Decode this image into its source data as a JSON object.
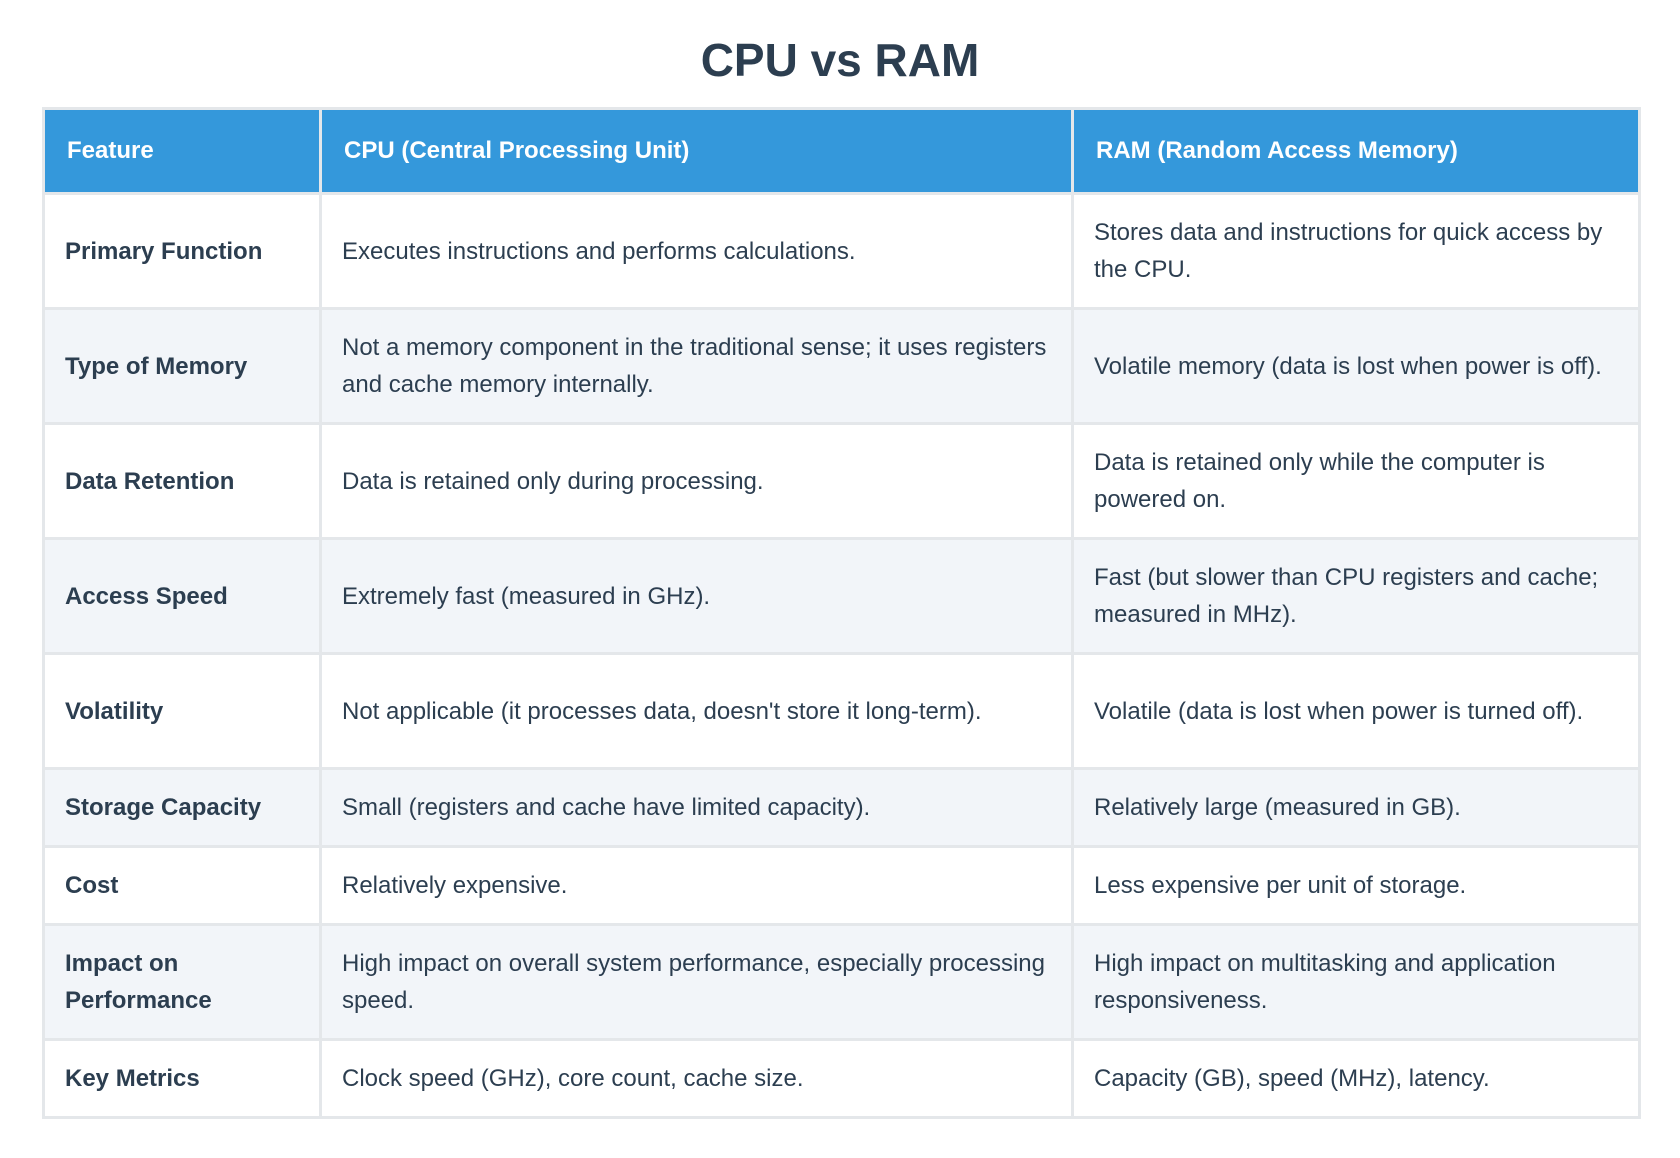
{
  "title": "CPU vs RAM",
  "table": {
    "headers": [
      "Feature",
      "CPU (Central Processing Unit)",
      "RAM (Random Access Memory)"
    ],
    "rows": [
      {
        "feature": "Primary Function",
        "cpu": "Executes instructions and performs calculations.",
        "ram": "Stores data and instructions for quick access by the CPU."
      },
      {
        "feature": "Type of Memory",
        "cpu": "Not a memory component in the traditional sense; it uses registers and cache memory internally.",
        "ram": "Volatile memory (data is lost when power is off)."
      },
      {
        "feature": "Data Retention",
        "cpu": "Data is retained only during processing.",
        "ram": "Data is retained only while the computer is powered on."
      },
      {
        "feature": "Access Speed",
        "cpu": "Extremely fast (measured in GHz).",
        "ram": "Fast (but slower than CPU registers and cache; measured in MHz)."
      },
      {
        "feature": "Volatility",
        "cpu": "Not applicable (it processes data, doesn't store it long-term).",
        "ram": "Volatile (data is lost when power is turned off)."
      },
      {
        "feature": "Storage Capacity",
        "cpu": "Small (registers and cache have limited capacity).",
        "ram": "Relatively large (measured in GB)."
      },
      {
        "feature": "Cost",
        "cpu": "Relatively expensive.",
        "ram": "Less expensive per unit of storage."
      },
      {
        "feature": "Impact on Performance",
        "cpu": "High impact on overall system performance, especially processing speed.",
        "ram": "High impact on multitasking and application responsiveness."
      },
      {
        "feature": "Key Metrics",
        "cpu": "Clock speed (GHz), core count, cache size.",
        "ram": "Capacity (GB), speed (MHz), latency."
      }
    ]
  },
  "colors": {
    "header_bg": "#3498db",
    "header_text": "#ffffff",
    "text": "#2c3e50",
    "row_alt_bg": "#f2f5f9",
    "border": "#e4e7ea"
  }
}
